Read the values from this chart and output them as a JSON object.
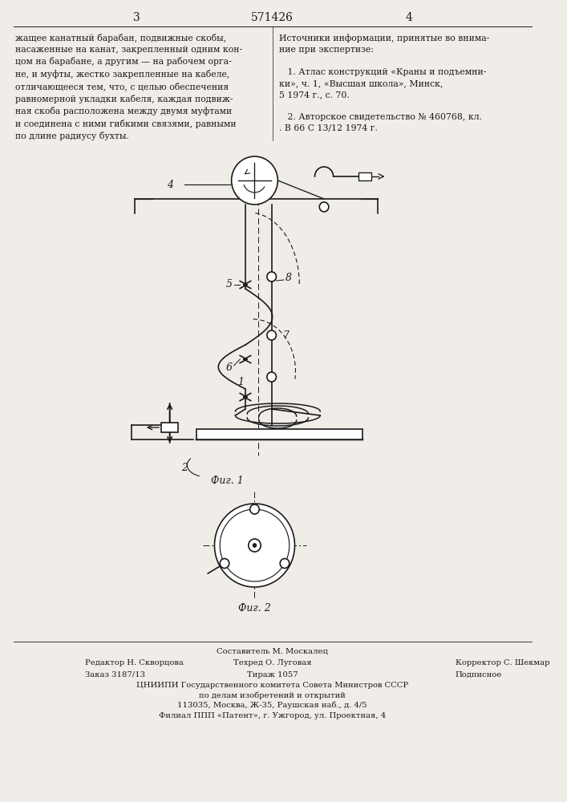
{
  "bg_color": "#f0ede8",
  "line_color": "#1a1a1a",
  "page_number_left": "3",
  "page_number_center": "571426",
  "page_number_right": "4",
  "text_left": "жащее канатный барабан, подвижные скобы,\nнасаженные на канат, закрепленный одним кон-\nцом на барабане, а другим — на рабочем орга-\nне, и муфты, жестко закрепленные на кабеле,\nотличающееся тем, что, с целью обеспечения\nравномерной укладки кабеля, каждая подвиж-\nная скоба расположена между двумя муфтами\nи соединена с ними гибкими связями, равными\nпо длине радиусу бухты.",
  "text_right": "Источники информации, принятые во внима-\nние при экспертизе:\n\n   1. Атлас конструкций «Краны и подъемни-\nки», ч. 1, «Высшая школа», Минск,\n5 1974 г., с. 70.\n\n   2. Авторское свидетельство № 460768, кл.\n. В 66 С 13/12 1974 г.",
  "fig1_label": "Фиг. 1",
  "fig2_label": "Фиг. 2",
  "footer_line1": "Составитель М. Москалец",
  "footer_line2_left": "Редактор Н. Скворцова",
  "footer_line2_mid": "Техред О. Луговая",
  "footer_line2_right": "Корректор С. Шекмар",
  "footer_line3_left": "Заказ 3187/13",
  "footer_line3_mid": "Тираж 1057",
  "footer_line3_right": "Подписное",
  "footer_line4": "ЦНИИПИ Государственного комитета Совета Министров СССР",
  "footer_line5": "по делам изобретений и открытий",
  "footer_line6": "113035, Москва, Ж-35, Раушская наб., д. 4/5",
  "footer_line7": "Филиал ППП «Патент», г. Ужгород, ул. Проектная, 4"
}
